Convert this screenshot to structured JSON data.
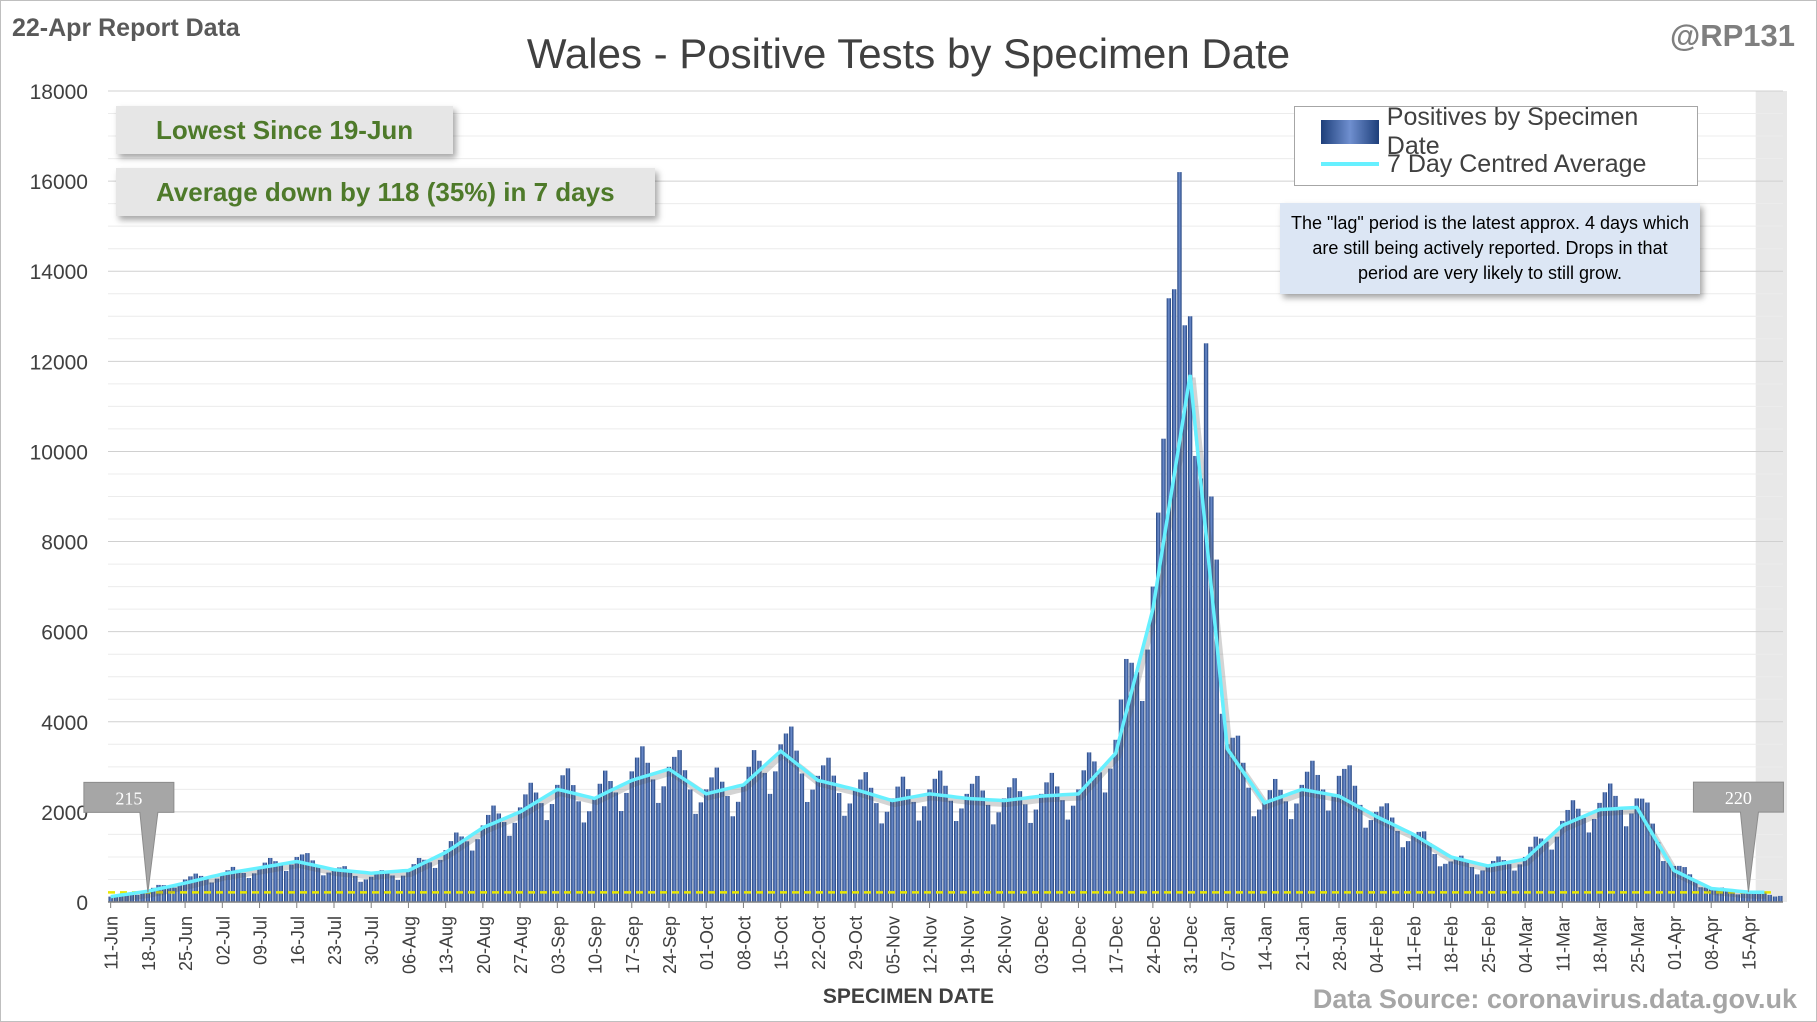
{
  "header": {
    "report_label": "22-Apr Report Data",
    "handle": "@RP131",
    "title": "Wales - Positive Tests by Specimen Date"
  },
  "callouts": {
    "lowest": "Lowest Since 19-Jun",
    "average": "Average down by 118 (35%) in 7 days"
  },
  "legend": {
    "bars": "Positives by Specimen Date",
    "line": "7 Day Centred Average"
  },
  "note": "The \"lag\" period is the latest approx. 4 days which are still being actively reported. Drops in that period are very likely to still grow.",
  "footer": {
    "source": "Data Source: coronavirus.data.gov.uk"
  },
  "colors": {
    "bar_dark": "#1e3f7a",
    "bar_light": "#6f8fcf",
    "average_line": "#66f0ff",
    "reference_line": "#e8e800",
    "callout_text": "#4e7a2a",
    "marker": "#a6a6a6"
  },
  "chart_data": {
    "type": "bar",
    "title": "Wales - Positive Tests by Specimen Date",
    "xlabel": "SPECIMEN DATE",
    "ylabel": "",
    "ylim": [
      0,
      18000
    ],
    "y_ticks": [
      0,
      2000,
      4000,
      6000,
      8000,
      10000,
      12000,
      14000,
      16000,
      18000
    ],
    "grid": true,
    "legend_position": "top-right",
    "x_start": "2020-06-11",
    "x_end": "2021-04-21",
    "x_tick_labels": [
      "11-Jun",
      "18-Jun",
      "25-Jun",
      "02-Jul",
      "09-Jul",
      "16-Jul",
      "23-Jul",
      "30-Jul",
      "06-Aug",
      "13-Aug",
      "20-Aug",
      "27-Aug",
      "03-Sep",
      "10-Sep",
      "17-Sep",
      "24-Sep",
      "01-Oct",
      "08-Oct",
      "15-Oct",
      "22-Oct",
      "29-Oct",
      "05-Nov",
      "12-Nov",
      "19-Nov",
      "26-Nov",
      "03-Dec",
      "10-Dec",
      "17-Dec",
      "24-Dec",
      "31-Dec",
      "07-Jan",
      "14-Jan",
      "21-Jan",
      "28-Jan",
      "04-Feb",
      "11-Feb",
      "18-Feb",
      "25-Feb",
      "04-Mar",
      "11-Mar",
      "18-Mar",
      "25-Mar",
      "01-Apr",
      "08-Apr",
      "15-Apr"
    ],
    "lag_period": [
      "2021-04-18",
      "2021-04-21"
    ],
    "reference_line_value": 215,
    "markers": [
      {
        "label": "215",
        "date": "2020-06-18",
        "value": 215
      },
      {
        "label": "220",
        "date": "2021-04-15",
        "value": 220
      }
    ],
    "series": [
      {
        "name": "Positives by Specimen Date",
        "type": "bar",
        "weekly_anchor_values": [
          120,
          250,
          500,
          620,
          760,
          1000,
          720,
          560,
          700,
          1150,
          1700,
          2100,
          2600,
          2300,
          2900,
          3000,
          2500,
          2600,
          3500,
          2800,
          2500,
          2300,
          2500,
          2400,
          2300,
          2400,
          2500,
          3600,
          7000,
          13000,
          3500,
          2200,
          2600,
          2800,
          2000,
          1500,
          900,
          800,
          1000,
          1800,
          2200,
          2300,
          800,
          300,
          200,
          150
        ],
        "peak_2020-12-29": 16200
      },
      {
        "name": "7 Day Centred Average",
        "type": "line",
        "weekly_values": [
          120,
          240,
          420,
          620,
          760,
          900,
          720,
          640,
          700,
          1100,
          1650,
          2000,
          2500,
          2300,
          2700,
          2950,
          2400,
          2600,
          3350,
          2700,
          2500,
          2250,
          2400,
          2300,
          2250,
          2350,
          2400,
          3300,
          6500,
          11700,
          3400,
          2200,
          2500,
          2350,
          1900,
          1500,
          1000,
          800,
          950,
          1700,
          2050,
          2100,
          700,
          300,
          220,
          210
        ]
      }
    ]
  }
}
